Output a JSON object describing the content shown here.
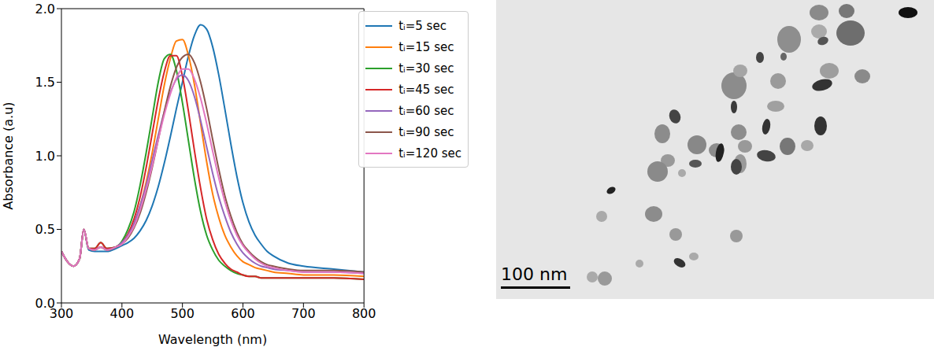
{
  "chart_data": {
    "type": "line",
    "x_label": "Wavelength (nm)",
    "y_label": "Absorbance (a.u)",
    "x": [
      300,
      310,
      320,
      330,
      337,
      345,
      355,
      365,
      375,
      390,
      400,
      410,
      420,
      430,
      440,
      450,
      460,
      470,
      480,
      490,
      500,
      510,
      520,
      530,
      540,
      550,
      560,
      570,
      580,
      590,
      600,
      610,
      620,
      630,
      640,
      650,
      675,
      700,
      750,
      800
    ],
    "xlim": [
      300,
      800
    ],
    "xticks": [
      300,
      400,
      500,
      600,
      700,
      800
    ],
    "ylim": [
      0,
      2
    ],
    "yticks": [
      {
        "value": 0,
        "label": "0.0"
      },
      {
        "value": 0.5,
        "label": "0.5"
      },
      {
        "value": 1,
        "label": "1.0"
      },
      {
        "value": 1.5,
        "label": "1.5"
      },
      {
        "value": 2,
        "label": "2.0"
      }
    ],
    "legend": "upper right",
    "grid": false,
    "series": [
      {
        "name": "tᵢ=5 sec",
        "color": "#1f77b4",
        "values": [
          0.35,
          0.28,
          0.25,
          0.3,
          0.5,
          0.36,
          0.35,
          0.35,
          0.35,
          0.37,
          0.39,
          0.41,
          0.44,
          0.49,
          0.56,
          0.66,
          0.79,
          0.95,
          1.13,
          1.32,
          1.5,
          1.68,
          1.82,
          1.89,
          1.86,
          1.74,
          1.55,
          1.32,
          1.08,
          0.86,
          0.68,
          0.55,
          0.46,
          0.4,
          0.35,
          0.32,
          0.27,
          0.25,
          0.23,
          0.21
        ]
      },
      {
        "name": "tᵢ=15 sec",
        "color": "#ff7f0e",
        "values": [
          0.35,
          0.28,
          0.25,
          0.3,
          0.5,
          0.37,
          0.36,
          0.38,
          0.36,
          0.38,
          0.41,
          0.46,
          0.54,
          0.66,
          0.82,
          1.02,
          1.25,
          1.48,
          1.66,
          1.78,
          1.79,
          1.68,
          1.48,
          1.22,
          0.96,
          0.74,
          0.58,
          0.46,
          0.38,
          0.32,
          0.28,
          0.26,
          0.24,
          0.23,
          0.22,
          0.21,
          0.2,
          0.19,
          0.19,
          0.18
        ]
      },
      {
        "name": "tᵢ=30 sec",
        "color": "#2ca02c",
        "values": [
          0.35,
          0.28,
          0.25,
          0.3,
          0.5,
          0.37,
          0.37,
          0.41,
          0.37,
          0.38,
          0.42,
          0.5,
          0.62,
          0.8,
          1.02,
          1.26,
          1.5,
          1.66,
          1.69,
          1.58,
          1.36,
          1.1,
          0.84,
          0.62,
          0.46,
          0.36,
          0.29,
          0.25,
          0.22,
          0.2,
          0.19,
          0.18,
          0.18,
          0.17,
          0.17,
          0.17,
          0.17,
          0.17,
          0.17,
          0.16
        ]
      },
      {
        "name": "tᵢ=45 sec",
        "color": "#d62728",
        "values": [
          0.35,
          0.28,
          0.25,
          0.3,
          0.5,
          0.37,
          0.37,
          0.41,
          0.37,
          0.38,
          0.41,
          0.47,
          0.57,
          0.72,
          0.92,
          1.15,
          1.38,
          1.57,
          1.68,
          1.68,
          1.54,
          1.3,
          1.03,
          0.78,
          0.57,
          0.43,
          0.33,
          0.27,
          0.23,
          0.21,
          0.19,
          0.18,
          0.18,
          0.17,
          0.17,
          0.17,
          0.17,
          0.17,
          0.17,
          0.16
        ]
      },
      {
        "name": "tᵢ=60 sec",
        "color": "#9467bd",
        "values": [
          0.35,
          0.28,
          0.25,
          0.3,
          0.5,
          0.37,
          0.36,
          0.38,
          0.36,
          0.38,
          0.41,
          0.46,
          0.54,
          0.66,
          0.8,
          0.97,
          1.14,
          1.3,
          1.43,
          1.52,
          1.55,
          1.51,
          1.4,
          1.24,
          1.06,
          0.88,
          0.72,
          0.59,
          0.48,
          0.4,
          0.34,
          0.3,
          0.27,
          0.25,
          0.24,
          0.23,
          0.22,
          0.21,
          0.21,
          0.2
        ]
      },
      {
        "name": "tᵢ=90 sec",
        "color": "#8c564b",
        "values": [
          0.35,
          0.28,
          0.25,
          0.3,
          0.5,
          0.37,
          0.36,
          0.38,
          0.36,
          0.38,
          0.4,
          0.44,
          0.51,
          0.61,
          0.75,
          0.92,
          1.11,
          1.3,
          1.47,
          1.6,
          1.67,
          1.69,
          1.63,
          1.5,
          1.32,
          1.11,
          0.91,
          0.73,
          0.59,
          0.48,
          0.4,
          0.35,
          0.31,
          0.28,
          0.26,
          0.25,
          0.23,
          0.22,
          0.22,
          0.21
        ]
      },
      {
        "name": "tᵢ=120 sec",
        "color": "#e377c2",
        "values": [
          0.35,
          0.28,
          0.25,
          0.3,
          0.5,
          0.37,
          0.36,
          0.38,
          0.36,
          0.38,
          0.4,
          0.45,
          0.52,
          0.63,
          0.77,
          0.93,
          1.11,
          1.28,
          1.42,
          1.53,
          1.59,
          1.59,
          1.52,
          1.39,
          1.22,
          1.03,
          0.85,
          0.69,
          0.56,
          0.46,
          0.39,
          0.34,
          0.3,
          0.27,
          0.25,
          0.24,
          0.22,
          0.21,
          0.21,
          0.2
        ]
      }
    ]
  },
  "image_panel": {
    "scale_bar_label": "100 nm"
  }
}
